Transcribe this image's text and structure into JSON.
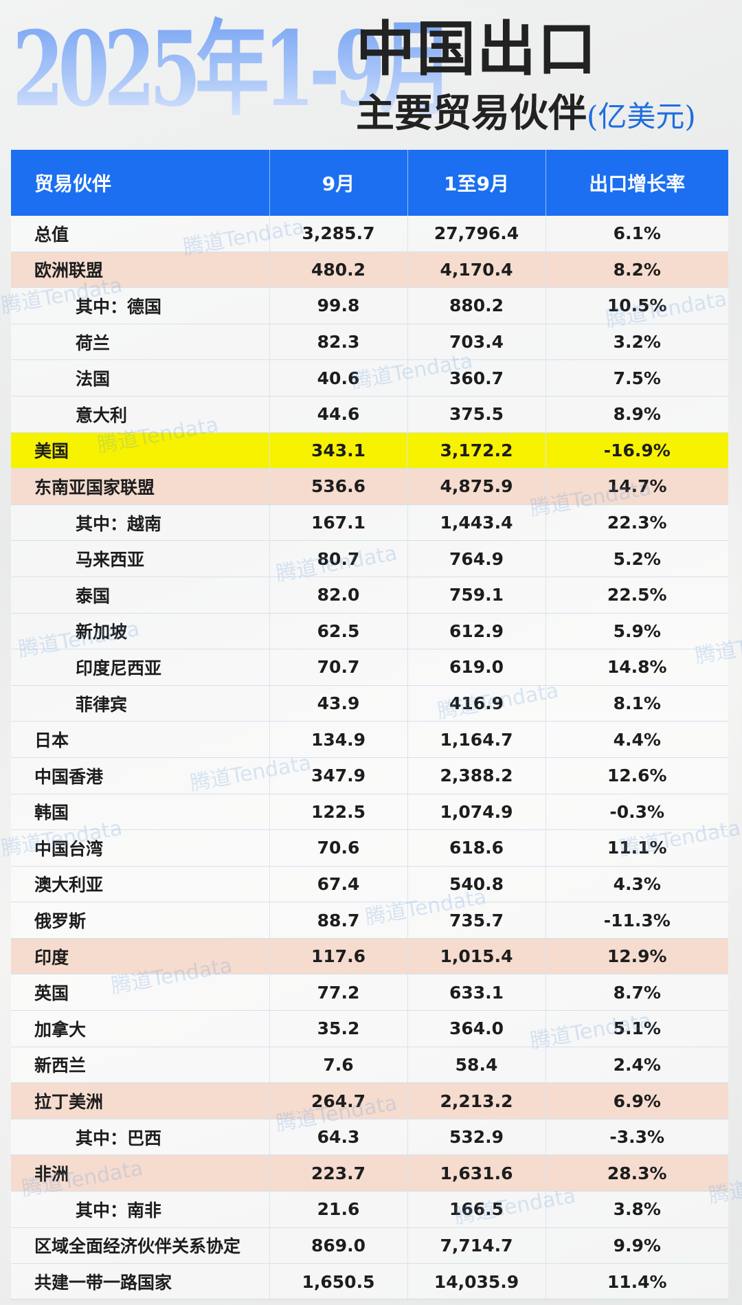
{
  "header": {
    "big_title": "2025年1-9月",
    "title_line1": "中国出口",
    "title_line2": "主要贸易伙伴",
    "unit": "(亿美元)"
  },
  "watermark": "腾道Tendata",
  "colors": {
    "header_blue": "#1b6ff0",
    "highlight_salmon": "#f5dccf",
    "highlight_yellow": "#f7f200",
    "title_gradient_blue": "#6f9ef2"
  },
  "chart_data": {
    "type": "table",
    "columns": [
      "贸易伙伴",
      "9月",
      "1至9月",
      "出口增长率"
    ],
    "rows": [
      {
        "name": "总值",
        "sep": "3,285.7",
        "jan_sep": "27,796.4",
        "growth": "6.1%",
        "indent": false,
        "tone": ""
      },
      {
        "name": "欧洲联盟",
        "sep": "480.2",
        "jan_sep": "4,170.4",
        "growth": "8.2%",
        "indent": false,
        "tone": "salmon"
      },
      {
        "name": "其中：德国",
        "sep": "99.8",
        "jan_sep": "880.2",
        "growth": "10.5%",
        "indent": true,
        "tone": ""
      },
      {
        "name": "荷兰",
        "sep": "82.3",
        "jan_sep": "703.4",
        "growth": "3.2%",
        "indent": true,
        "tone": ""
      },
      {
        "name": "法国",
        "sep": "40.6",
        "jan_sep": "360.7",
        "growth": "7.5%",
        "indent": true,
        "tone": ""
      },
      {
        "name": "意大利",
        "sep": "44.6",
        "jan_sep": "375.5",
        "growth": "8.9%",
        "indent": true,
        "tone": ""
      },
      {
        "name": "美国",
        "sep": "343.1",
        "jan_sep": "3,172.2",
        "growth": "-16.9%",
        "indent": false,
        "tone": "yellow"
      },
      {
        "name": "东南亚国家联盟",
        "sep": "536.6",
        "jan_sep": "4,875.9",
        "growth": "14.7%",
        "indent": false,
        "tone": "salmon"
      },
      {
        "name": "其中：越南",
        "sep": "167.1",
        "jan_sep": "1,443.4",
        "growth": "22.3%",
        "indent": true,
        "tone": ""
      },
      {
        "name": "马来西亚",
        "sep": "80.7",
        "jan_sep": "764.9",
        "growth": "5.2%",
        "indent": true,
        "tone": ""
      },
      {
        "name": "泰国",
        "sep": "82.0",
        "jan_sep": "759.1",
        "growth": "22.5%",
        "indent": true,
        "tone": ""
      },
      {
        "name": "新加坡",
        "sep": "62.5",
        "jan_sep": "612.9",
        "growth": "5.9%",
        "indent": true,
        "tone": ""
      },
      {
        "name": "印度尼西亚",
        "sep": "70.7",
        "jan_sep": "619.0",
        "growth": "14.8%",
        "indent": true,
        "tone": ""
      },
      {
        "name": "菲律宾",
        "sep": "43.9",
        "jan_sep": "416.9",
        "growth": "8.1%",
        "indent": true,
        "tone": ""
      },
      {
        "name": "日本",
        "sep": "134.9",
        "jan_sep": "1,164.7",
        "growth": "4.4%",
        "indent": false,
        "tone": ""
      },
      {
        "name": "中国香港",
        "sep": "347.9",
        "jan_sep": "2,388.2",
        "growth": "12.6%",
        "indent": false,
        "tone": ""
      },
      {
        "name": "韩国",
        "sep": "122.5",
        "jan_sep": "1,074.9",
        "growth": "-0.3%",
        "indent": false,
        "tone": ""
      },
      {
        "name": "中国台湾",
        "sep": "70.6",
        "jan_sep": "618.6",
        "growth": "11.1%",
        "indent": false,
        "tone": ""
      },
      {
        "name": "澳大利亚",
        "sep": "67.4",
        "jan_sep": "540.8",
        "growth": "4.3%",
        "indent": false,
        "tone": ""
      },
      {
        "name": "俄罗斯",
        "sep": "88.7",
        "jan_sep": "735.7",
        "growth": "-11.3%",
        "indent": false,
        "tone": ""
      },
      {
        "name": "印度",
        "sep": "117.6",
        "jan_sep": "1,015.4",
        "growth": "12.9%",
        "indent": false,
        "tone": "salmon"
      },
      {
        "name": "英国",
        "sep": "77.2",
        "jan_sep": "633.1",
        "growth": "8.7%",
        "indent": false,
        "tone": ""
      },
      {
        "name": "加拿大",
        "sep": "35.2",
        "jan_sep": "364.0",
        "growth": "5.1%",
        "indent": false,
        "tone": ""
      },
      {
        "name": "新西兰",
        "sep": "7.6",
        "jan_sep": "58.4",
        "growth": "2.4%",
        "indent": false,
        "tone": ""
      },
      {
        "name": "拉丁美洲",
        "sep": "264.7",
        "jan_sep": "2,213.2",
        "growth": "6.9%",
        "indent": false,
        "tone": "salmon"
      },
      {
        "name": "其中：巴西",
        "sep": "64.3",
        "jan_sep": "532.9",
        "growth": "-3.3%",
        "indent": true,
        "tone": ""
      },
      {
        "name": "非洲",
        "sep": "223.7",
        "jan_sep": "1,631.6",
        "growth": "28.3%",
        "indent": false,
        "tone": "salmon"
      },
      {
        "name": "其中：南非",
        "sep": "21.6",
        "jan_sep": "166.5",
        "growth": "3.8%",
        "indent": true,
        "tone": ""
      },
      {
        "name": "区域全面经济伙伴关系协定",
        "sep": "869.0",
        "jan_sep": "7,714.7",
        "growth": "9.9%",
        "indent": false,
        "tone": ""
      },
      {
        "name": "共建一带一路国家",
        "sep": "1,650.5",
        "jan_sep": "14,035.9",
        "growth": "11.4%",
        "indent": false,
        "tone": ""
      }
    ]
  }
}
